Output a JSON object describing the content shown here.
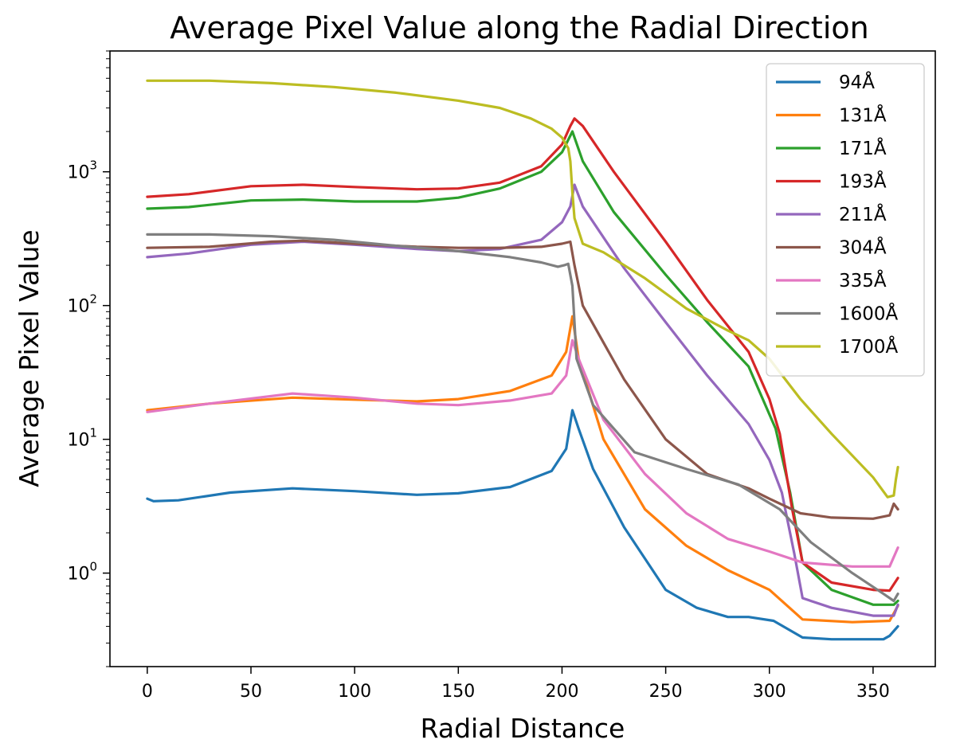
{
  "chart_data": {
    "type": "line",
    "title": "Average Pixel Value along the Radial Direction",
    "xlabel": "Radial Distance",
    "ylabel": "Average Pixel Value",
    "xlim": [
      -18,
      380
    ],
    "ylim": [
      0.2,
      8000
    ],
    "yscale": "log",
    "xticks": [
      0,
      50,
      100,
      150,
      200,
      250,
      300,
      350
    ],
    "yticks": [
      {
        "value": 1,
        "base": "10",
        "exp": "0"
      },
      {
        "value": 10,
        "base": "10",
        "exp": "1"
      },
      {
        "value": 100,
        "base": "10",
        "exp": "2"
      },
      {
        "value": 1000,
        "base": "10",
        "exp": "3"
      }
    ],
    "legend_position": "top-right",
    "grid": false,
    "series": [
      {
        "name": "94Å",
        "color": "#1f77b4",
        "x": [
          0,
          3,
          15,
          40,
          70,
          100,
          130,
          150,
          175,
          195,
          202,
          205,
          208,
          215,
          230,
          250,
          265,
          280,
          290,
          302,
          316,
          330,
          355,
          358,
          362
        ],
        "y": [
          3.6,
          3.45,
          3.5,
          4.0,
          4.3,
          4.1,
          3.85,
          3.95,
          4.4,
          5.8,
          8.5,
          16.5,
          12,
          6,
          2.2,
          0.75,
          0.55,
          0.47,
          0.47,
          0.44,
          0.33,
          0.32,
          0.32,
          0.34,
          0.4
        ]
      },
      {
        "name": "131Å",
        "color": "#ff7f0e",
        "x": [
          0,
          30,
          70,
          100,
          130,
          150,
          175,
          195,
          202,
          205,
          208,
          220,
          240,
          260,
          280,
          300,
          316,
          340,
          358,
          362
        ],
        "y": [
          16.5,
          18.5,
          20.5,
          19.8,
          19.2,
          20,
          23,
          30,
          45,
          83,
          40,
          10,
          3.0,
          1.6,
          1.05,
          0.75,
          0.45,
          0.43,
          0.44,
          0.57
        ]
      },
      {
        "name": "171Å",
        "color": "#2ca02c",
        "x": [
          0,
          20,
          50,
          75,
          100,
          130,
          150,
          170,
          190,
          200,
          205,
          210,
          225,
          250,
          270,
          290,
          303,
          310,
          316,
          330,
          350,
          360,
          362
        ],
        "y": [
          530,
          545,
          610,
          620,
          600,
          600,
          640,
          750,
          1000,
          1400,
          2000,
          1200,
          500,
          170,
          75,
          35,
          12,
          4,
          1.2,
          0.75,
          0.58,
          0.58,
          0.62
        ]
      },
      {
        "name": "193Å",
        "color": "#d62728",
        "x": [
          0,
          20,
          50,
          75,
          100,
          130,
          150,
          170,
          190,
          200,
          204,
          206,
          210,
          225,
          250,
          270,
          290,
          300,
          305,
          311,
          316,
          330,
          350,
          358,
          362
        ],
        "y": [
          650,
          680,
          780,
          800,
          770,
          740,
          750,
          830,
          1100,
          1600,
          2200,
          2500,
          2200,
          1000,
          300,
          110,
          45,
          20,
          11,
          3.0,
          1.2,
          0.85,
          0.75,
          0.74,
          0.92
        ]
      },
      {
        "name": "211Å",
        "color": "#9467bd",
        "x": [
          0,
          20,
          50,
          75,
          100,
          130,
          150,
          170,
          190,
          200,
          204,
          206,
          210,
          230,
          250,
          270,
          290,
          300,
          306,
          312,
          316,
          330,
          350,
          360,
          362
        ],
        "y": [
          230,
          245,
          285,
          300,
          285,
          265,
          255,
          265,
          310,
          420,
          550,
          800,
          550,
          190,
          75,
          30,
          13,
          7,
          4,
          1.4,
          0.65,
          0.55,
          0.48,
          0.48,
          0.58
        ]
      },
      {
        "name": "304Å",
        "color": "#8c564b",
        "x": [
          0,
          30,
          60,
          75,
          100,
          130,
          150,
          170,
          190,
          200,
          204,
          206,
          210,
          230,
          250,
          270,
          290,
          300,
          315,
          330,
          350,
          358,
          360,
          362
        ],
        "y": [
          270,
          275,
          300,
          305,
          290,
          275,
          270,
          270,
          275,
          290,
          300,
          200,
          100,
          28,
          10,
          5.5,
          4.3,
          3.6,
          2.8,
          2.6,
          2.55,
          2.7,
          3.3,
          3.0
        ]
      },
      {
        "name": "335Å",
        "color": "#e377c2",
        "x": [
          0,
          30,
          70,
          100,
          130,
          150,
          175,
          195,
          202,
          205,
          208,
          220,
          240,
          260,
          280,
          300,
          316,
          340,
          358,
          362
        ],
        "y": [
          16,
          18.5,
          22,
          20.5,
          18.5,
          18,
          19.5,
          22,
          30,
          55,
          40,
          14,
          5.5,
          2.8,
          1.8,
          1.45,
          1.2,
          1.12,
          1.12,
          1.55
        ]
      },
      {
        "name": "1600Å",
        "color": "#7f7f7f",
        "x": [
          0,
          30,
          60,
          90,
          120,
          150,
          175,
          190,
          198,
          201,
          203,
          205,
          207,
          215,
          235,
          260,
          285,
          305,
          320,
          340,
          355,
          360,
          362
        ],
        "y": [
          340,
          340,
          330,
          310,
          280,
          255,
          230,
          210,
          195,
          200,
          205,
          140,
          40,
          18,
          8,
          6,
          4.6,
          3,
          1.7,
          1.0,
          0.7,
          0.62,
          0.7
        ]
      },
      {
        "name": "1700Å",
        "color": "#bcbd22",
        "x": [
          0,
          30,
          60,
          90,
          120,
          150,
          170,
          185,
          195,
          200,
          203,
          204,
          205,
          206,
          210,
          220,
          240,
          260,
          280,
          290,
          300,
          315,
          330,
          350,
          357,
          360,
          361,
          362
        ],
        "y": [
          4800,
          4800,
          4600,
          4300,
          3900,
          3400,
          3000,
          2500,
          2100,
          1800,
          1500,
          1200,
          700,
          450,
          290,
          250,
          160,
          95,
          65,
          55,
          40,
          20,
          11,
          5.2,
          3.7,
          3.8,
          5.0,
          6.2
        ]
      }
    ]
  }
}
